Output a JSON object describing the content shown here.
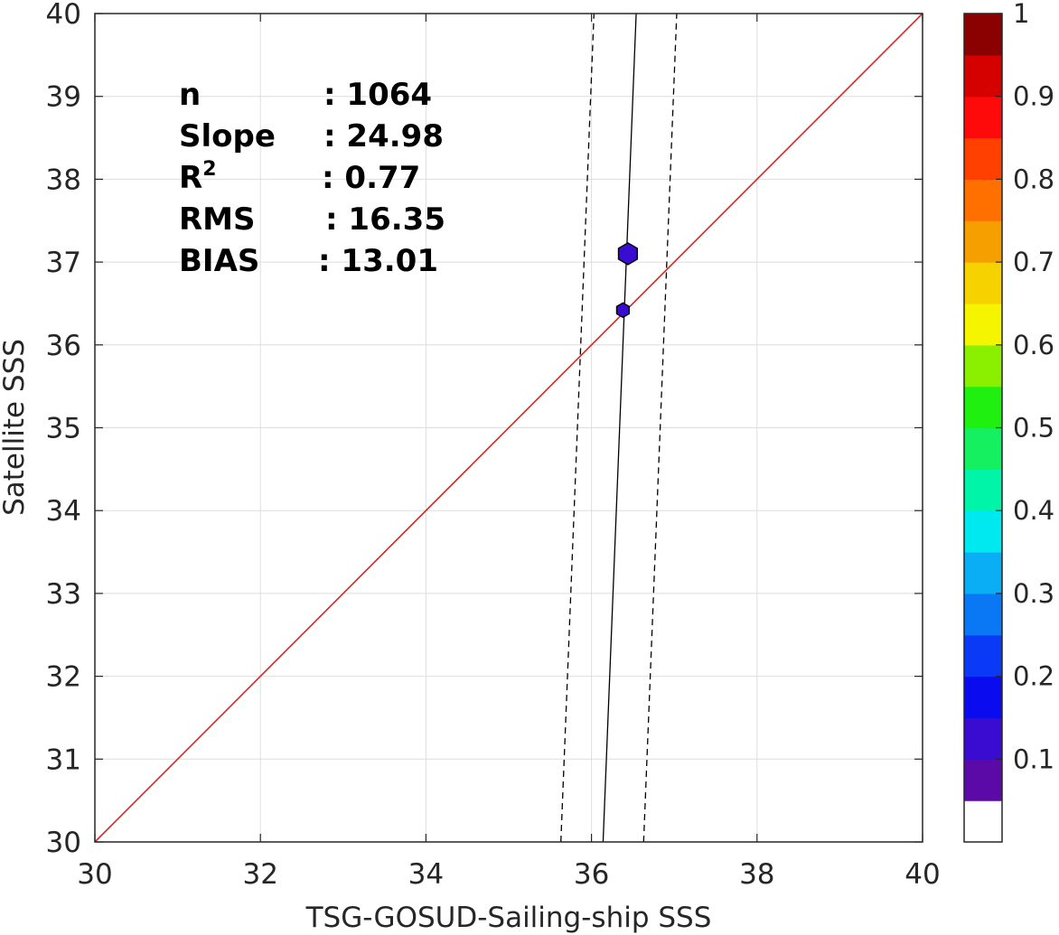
{
  "chart_data": {
    "type": "scatter",
    "title": "",
    "xlabel": "TSG-GOSUD-Sailing-ship SSS",
    "ylabel": "Satellite SSS",
    "xlim": [
      30,
      40
    ],
    "ylim": [
      30,
      40
    ],
    "x_ticks": [
      "30",
      "32",
      "34",
      "36",
      "38",
      "40"
    ],
    "y_ticks": [
      "30",
      "31",
      "32",
      "33",
      "34",
      "35",
      "36",
      "37",
      "38",
      "39",
      "40"
    ],
    "grid": true,
    "points": [
      {
        "x": 36.44,
        "y": 37.1,
        "density": 0.1,
        "color": "#3a0bd0"
      },
      {
        "x": 36.38,
        "y": 36.42,
        "density": 0.1,
        "color": "#3a0bd0"
      }
    ],
    "identity_line": {
      "color": "#d62728",
      "from": [
        30,
        30
      ],
      "to": [
        40,
        40
      ]
    },
    "fit_line": {
      "slope": 24.98,
      "x_at_y30": 36.14,
      "x_at_y40": 36.54
    },
    "bound_lines": [
      {
        "x_at_y30": 35.63,
        "x_at_y40": 36.03
      },
      {
        "x_at_y30": 36.63,
        "x_at_y40": 37.03
      }
    ],
    "stats": [
      {
        "label": "n",
        "value": ": 1064"
      },
      {
        "label": "Slope",
        "value": ": 24.98"
      },
      {
        "label": "R",
        "sup": "2",
        "value": ": 0.77"
      },
      {
        "label": "RMS",
        "value": ": 16.35"
      },
      {
        "label": "BIAS",
        "value": ": 13.01"
      }
    ],
    "colorbar": {
      "ticks": [
        "0.1",
        "0.2",
        "0.3",
        "0.4",
        "0.5",
        "0.6",
        "0.7",
        "0.8",
        "0.9",
        "1"
      ],
      "tick_values": [
        0.1,
        0.2,
        0.3,
        0.4,
        0.5,
        0.6,
        0.7,
        0.8,
        0.9,
        1.0
      ],
      "range": [
        0,
        1
      ],
      "colors": [
        "#ffffff",
        "#5b0aa8",
        "#3a0bd0",
        "#0b0bf0",
        "#0a3af5",
        "#0a78f5",
        "#0aaef5",
        "#00e8f0",
        "#00f5a8",
        "#15f060",
        "#20f010",
        "#8af000",
        "#f5f500",
        "#f5d200",
        "#f5a000",
        "#ff7000",
        "#ff4000",
        "#ff0a0a",
        "#d50000",
        "#8b0000"
      ]
    }
  }
}
